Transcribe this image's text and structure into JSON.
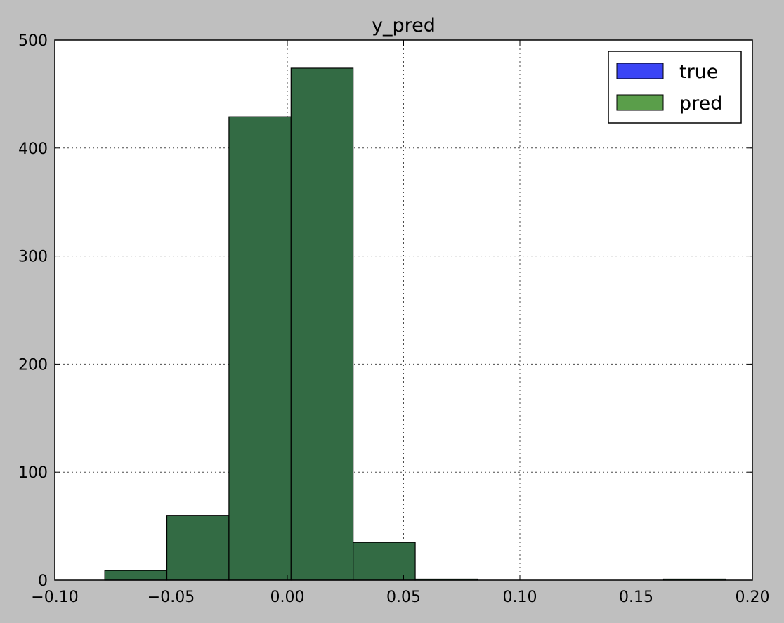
{
  "chart_data": {
    "type": "bar",
    "title": "y_pred",
    "xlabel": "",
    "ylabel": "",
    "xlim": [
      -0.1,
      0.2
    ],
    "ylim": [
      0,
      500
    ],
    "xticks": [
      -0.1,
      -0.05,
      0.0,
      0.05,
      0.1,
      0.15,
      0.2
    ],
    "xtick_labels": [
      "−0.10",
      "−0.05",
      "0.00",
      "0.05",
      "0.10",
      "0.15",
      "0.20"
    ],
    "yticks": [
      0,
      100,
      200,
      300,
      400,
      500
    ],
    "ytick_labels": [
      "0",
      "100",
      "200",
      "300",
      "400",
      "500"
    ],
    "grid": true,
    "legend": {
      "placement": "top-right",
      "entries": [
        {
          "label": "true",
          "color": "#3b45f5"
        },
        {
          "label": "pred",
          "color": "#5a9e4a"
        }
      ]
    },
    "series": [
      {
        "name": "pred",
        "color": "#336b44",
        "bins": [
          {
            "x0": -0.0785,
            "x1": -0.0518,
            "count": 9
          },
          {
            "x0": -0.0518,
            "x1": -0.0251,
            "count": 60
          },
          {
            "x0": -0.0251,
            "x1": 0.0016,
            "count": 429
          },
          {
            "x0": 0.0016,
            "x1": 0.0283,
            "count": 474
          },
          {
            "x0": 0.0283,
            "x1": 0.055,
            "count": 35
          },
          {
            "x0": 0.055,
            "x1": 0.0817,
            "count": 1
          },
          {
            "x0": 0.0817,
            "x1": 0.1084,
            "count": 0
          },
          {
            "x0": 0.1084,
            "x1": 0.1351,
            "count": 0
          },
          {
            "x0": 0.1351,
            "x1": 0.1618,
            "count": 0
          },
          {
            "x0": 0.1618,
            "x1": 0.1885,
            "count": 1
          }
        ]
      }
    ]
  }
}
